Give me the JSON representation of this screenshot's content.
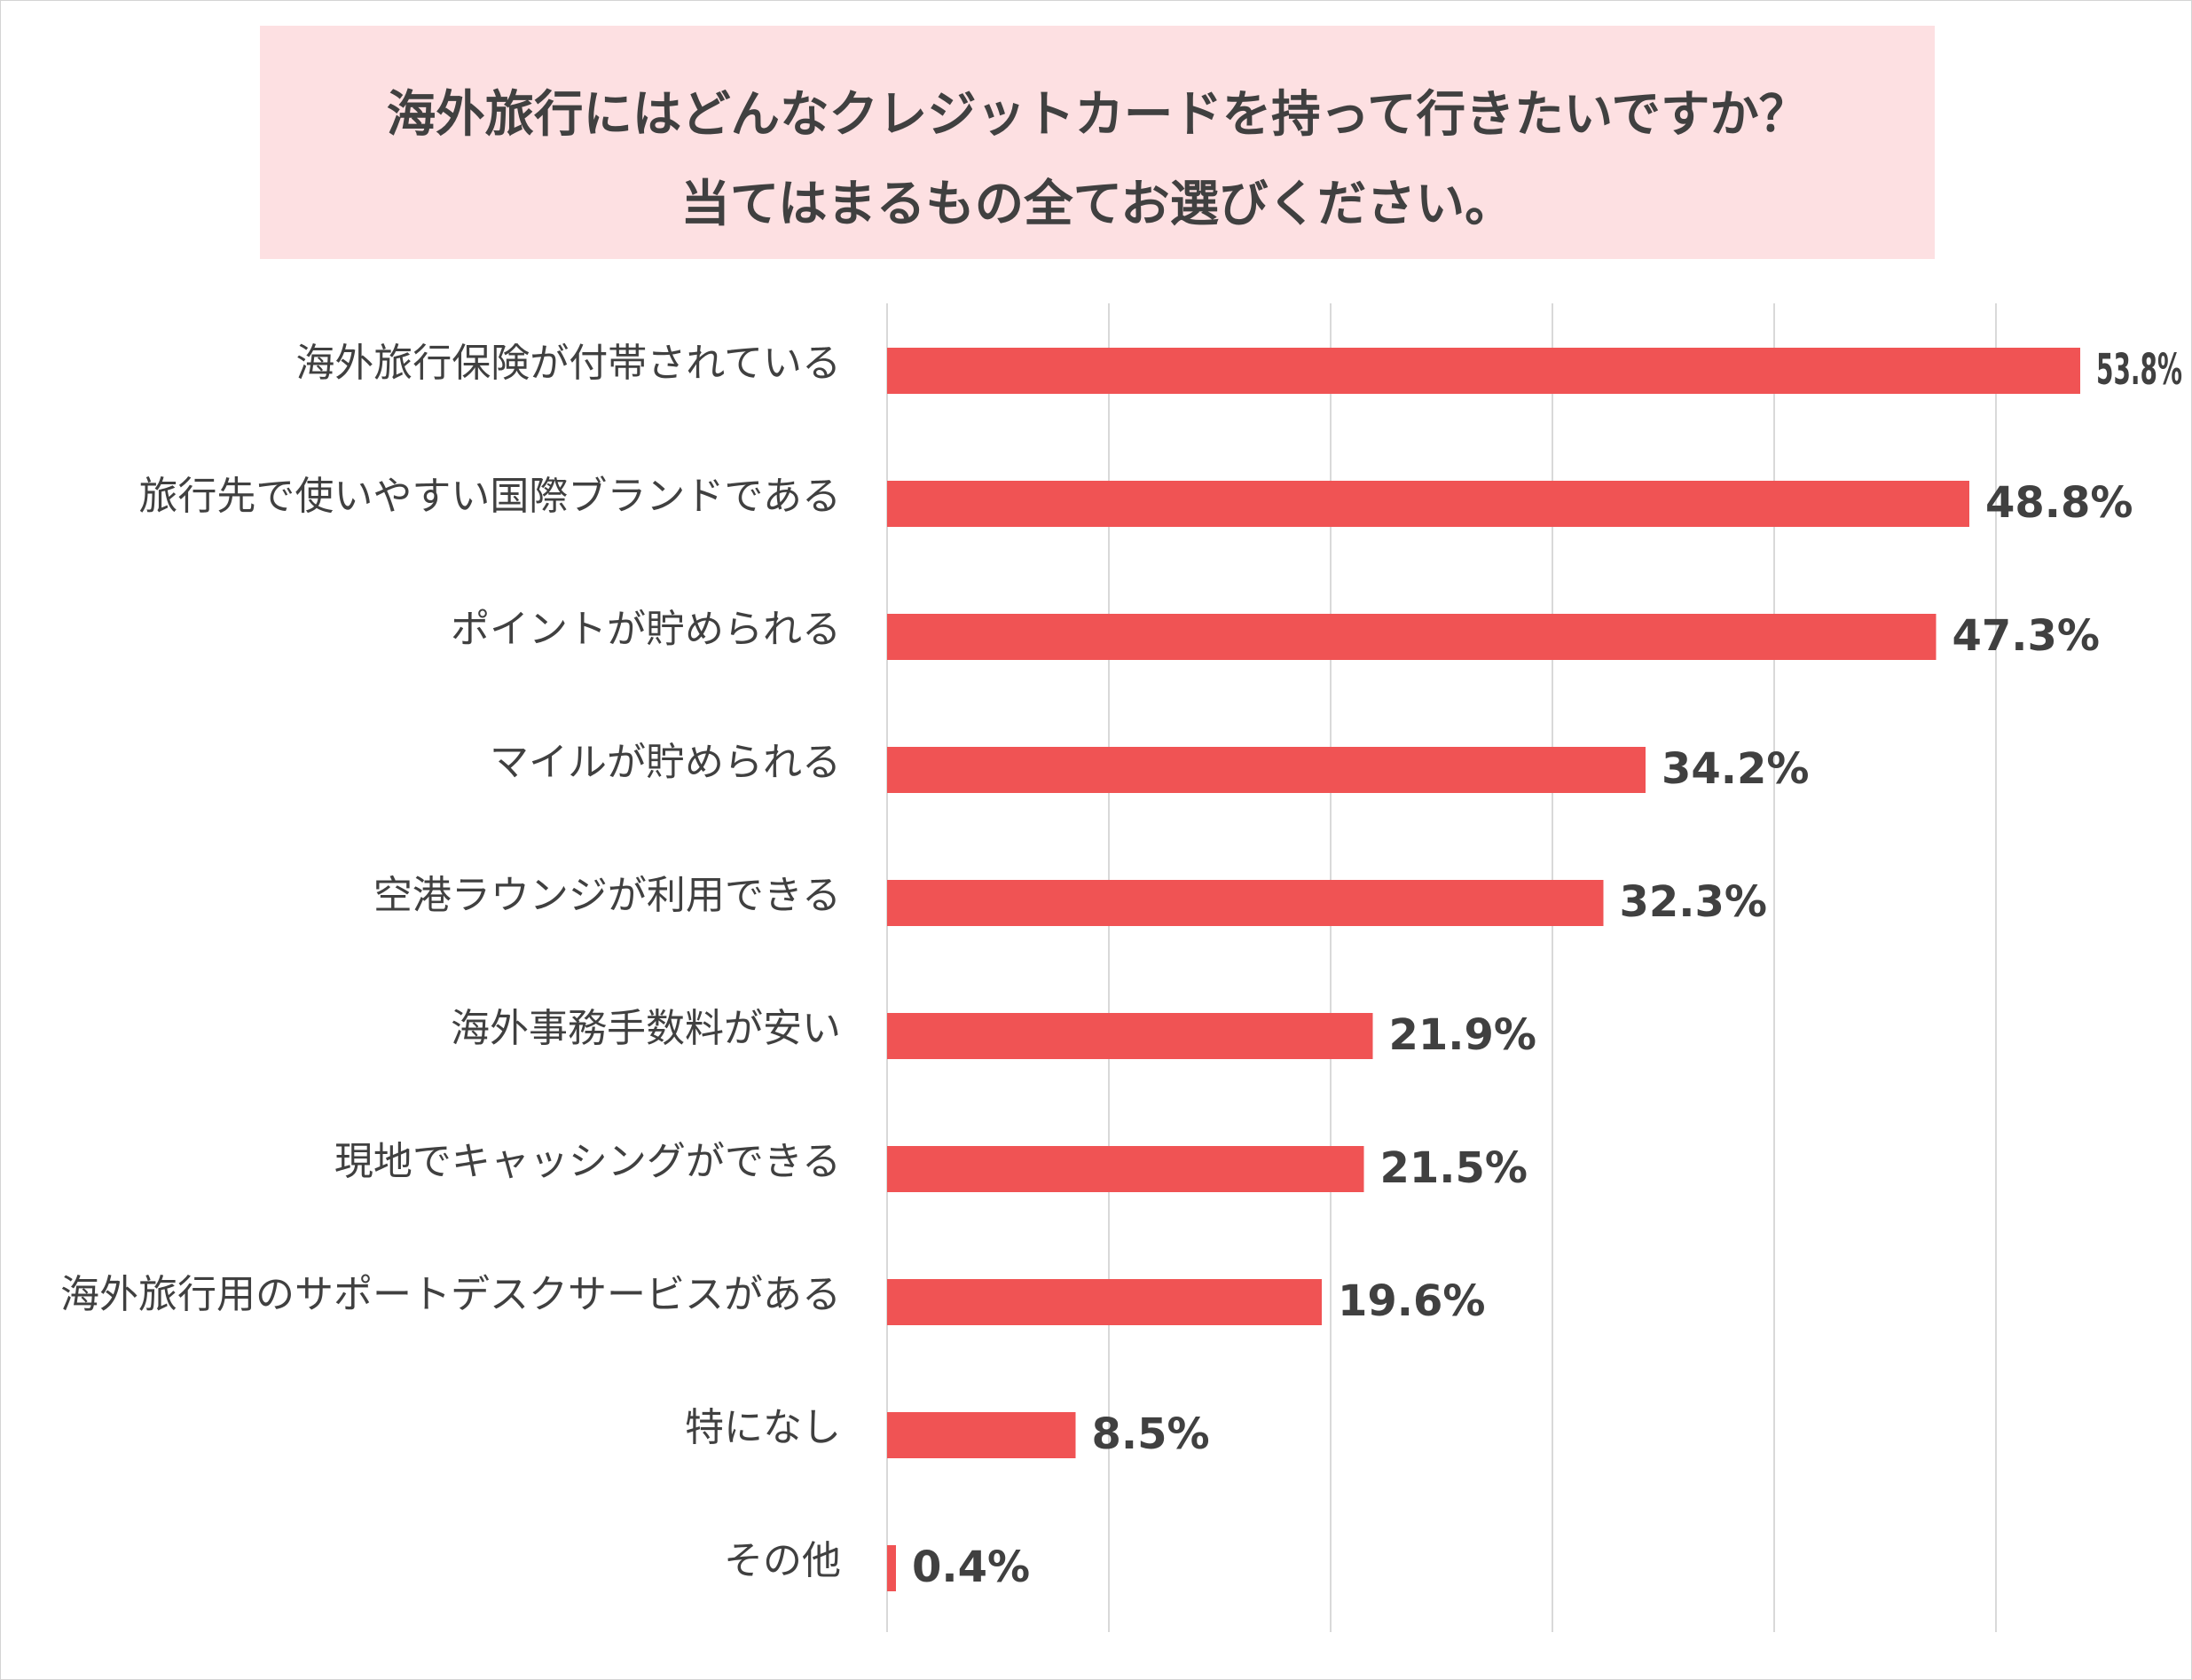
{
  "chart_data": {
    "type": "bar",
    "orientation": "horizontal",
    "title": "海外旅行にはどんなクレジットカードを持って行きたいですか？",
    "subtitle": "当てはまるもの全てお選びください。",
    "categories": [
      "海外旅行保険が付帯されている",
      "旅行先で使いやすい国際ブランドである",
      "ポイントが貯められる",
      "マイルが貯められる",
      "空港ラウンジが利用できる",
      "海外事務手数料が安い",
      "現地でキャッシングができる",
      "海外旅行用のサポートデスクサービスがある",
      "特になし",
      "その他"
    ],
    "values": [
      53.8,
      48.8,
      47.3,
      34.2,
      32.3,
      21.9,
      21.5,
      19.6,
      8.5,
      0.4
    ],
    "value_labels": [
      "53.8%",
      "48.8%",
      "47.3%",
      "34.2%",
      "32.3%",
      "21.9%",
      "21.5%",
      "19.6%",
      "8.5%",
      "0.4%"
    ],
    "xlim": [
      0,
      60
    ],
    "grid": true,
    "bar_color": "#f05354",
    "title_background": "#fde0e2",
    "text_color": "#404040"
  }
}
